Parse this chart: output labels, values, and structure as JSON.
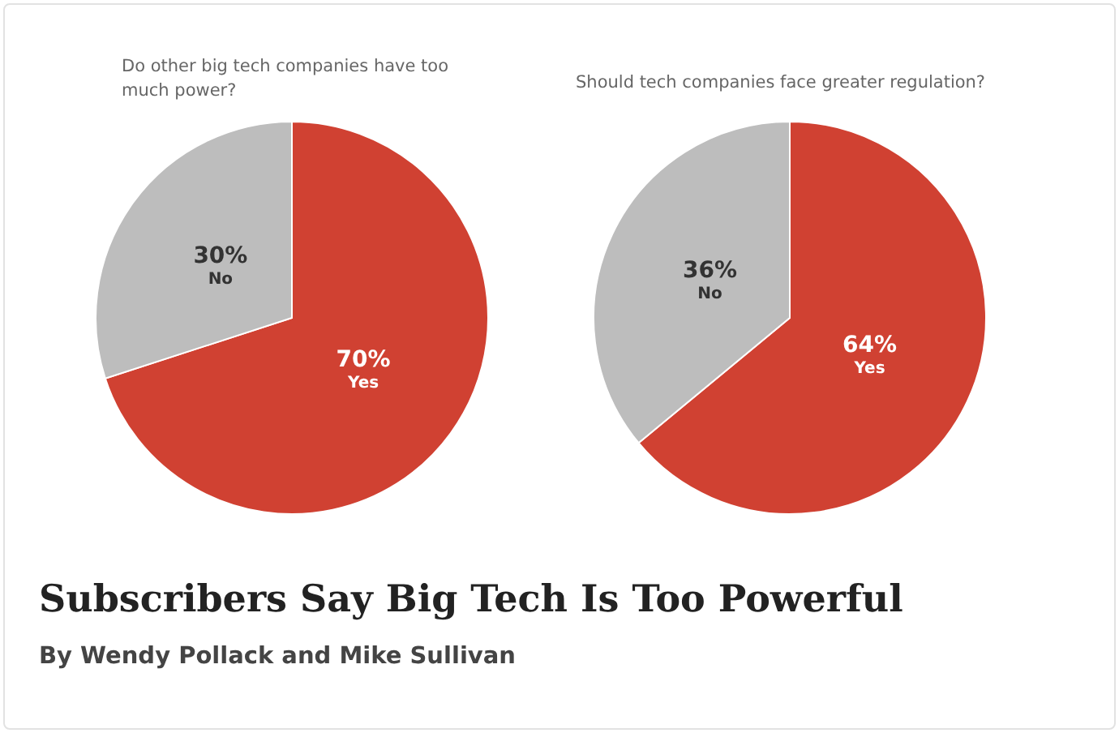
{
  "chart_data": [
    {
      "type": "pie",
      "title": "Do other big tech companies have too much power?",
      "categories": [
        "Yes",
        "No"
      ],
      "values": [
        70,
        30
      ],
      "colors": [
        "#d04132",
        "#bdbdbd"
      ],
      "data_labels": true,
      "value_labels": [
        "70%",
        "30%"
      ],
      "legend": false
    },
    {
      "type": "pie",
      "title": "Should tech companies face greater regulation?",
      "categories": [
        "Yes",
        "No"
      ],
      "values": [
        64,
        36
      ],
      "colors": [
        "#d04132",
        "#bdbdbd"
      ],
      "data_labels": true,
      "value_labels": [
        "64%",
        "36%"
      ],
      "legend": false
    },
    {
      "type": "other",
      "title": "Subscribers Say Big Tech Is Too Powerful",
      "subtitle": "By Wendy Pollack and Mike Sullivan"
    }
  ]
}
